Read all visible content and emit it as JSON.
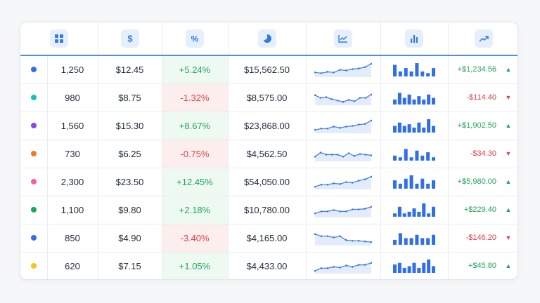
{
  "header": {
    "icons": [
      "grid-icon",
      "dollar-icon",
      "percent-icon",
      "pie-chart-icon",
      "line-chart-icon",
      "bar-chart-icon",
      "trend-up-icon"
    ]
  },
  "colors": {
    "accent": "#3479e6",
    "positive": "#23a35a",
    "negative": "#e0424b"
  },
  "rows": [
    {
      "dot": "#2f6fe8",
      "qty": "1,250",
      "price": "$12.45",
      "pct": "+5.24%",
      "dir": "up",
      "total": "$15,562.50",
      "change": "+$1,234.56",
      "spark": [
        3,
        2.5,
        3.5,
        3,
        5,
        4.5,
        5.5,
        6,
        7,
        9.5
      ],
      "bars": [
        7,
        3,
        5,
        3,
        8,
        3,
        2,
        5
      ]
    },
    {
      "dot": "#16c2b4",
      "qty": "980",
      "price": "$8.75",
      "pct": "-1.32%",
      "dir": "down",
      "total": "$8,575.00",
      "change": "-$114.40",
      "spark": [
        7,
        5,
        5.5,
        4,
        3,
        2,
        3.5,
        2.5,
        5,
        5,
        7.5
      ],
      "bars": [
        3,
        7,
        4,
        6,
        3,
        5,
        3,
        6,
        4
      ]
    },
    {
      "dot": "#8b46e8",
      "qty": "1,560",
      "price": "$15.30",
      "pct": "+8.67%",
      "dir": "up",
      "total": "$23,868.00",
      "change": "+$1,902.50",
      "spark": [
        2,
        3,
        3,
        4.5,
        3.5,
        4.5,
        5,
        6,
        6.5,
        9
      ],
      "bars": [
        4,
        6,
        4,
        5,
        3,
        6,
        3,
        8,
        4
      ]
    },
    {
      "dot": "#f27b1e",
      "qty": "730",
      "price": "$6.25",
      "pct": "-0.75%",
      "dir": "down",
      "total": "$4,562.50",
      "change": "-$34.30",
      "spark": [
        3,
        6,
        4.5,
        4.5,
        4.5,
        3,
        5.5,
        3.5,
        5,
        4.5,
        4
      ],
      "bars": [
        3,
        2,
        7,
        2,
        6,
        3,
        5,
        2
      ]
    },
    {
      "dot": "#ef62a8",
      "qty": "2,300",
      "price": "$23.50",
      "pct": "+12.45%",
      "dir": "up",
      "total": "$54,050.00",
      "change": "+$5,980.00",
      "spark": [
        1.5,
        3,
        3,
        4,
        3.5,
        5,
        4.5,
        6,
        7,
        9
      ],
      "bars": [
        5,
        3,
        6,
        8,
        3,
        6,
        3,
        5
      ]
    },
    {
      "dot": "#17a860",
      "qty": "1,100",
      "price": "$9.80",
      "pct": "+2.18%",
      "dir": "up",
      "total": "$10,780.00",
      "change": "+$229.40",
      "spark": [
        2.5,
        4,
        4,
        5,
        4,
        4,
        5.5,
        5.5,
        6,
        7.5
      ],
      "bars": [
        2,
        6,
        2,
        3,
        5,
        3,
        8,
        2,
        6
      ]
    },
    {
      "dot": "#2f6fe8",
      "qty": "850",
      "price": "$4.90",
      "pct": "-3.40%",
      "dir": "down",
      "total": "$4,165.00",
      "change": "-$146.20",
      "spark": [
        8,
        6.5,
        6.5,
        5.5,
        6.5,
        3.5,
        3,
        3,
        2.5,
        2
      ],
      "bars": [
        3,
        7,
        4,
        4,
        6,
        4,
        4,
        6
      ]
    },
    {
      "dot": "#f5c518",
      "qty": "620",
      "price": "$7.15",
      "pct": "+1.05%",
      "dir": "up",
      "total": "$4,433.00",
      "change": "+$45.80",
      "spark": [
        1.5,
        3.5,
        3.5,
        4.5,
        4,
        5.5,
        4.5,
        6,
        6,
        7.5
      ],
      "bars": [
        5,
        6,
        3,
        4,
        6,
        3,
        6,
        8,
        4
      ]
    }
  ]
}
